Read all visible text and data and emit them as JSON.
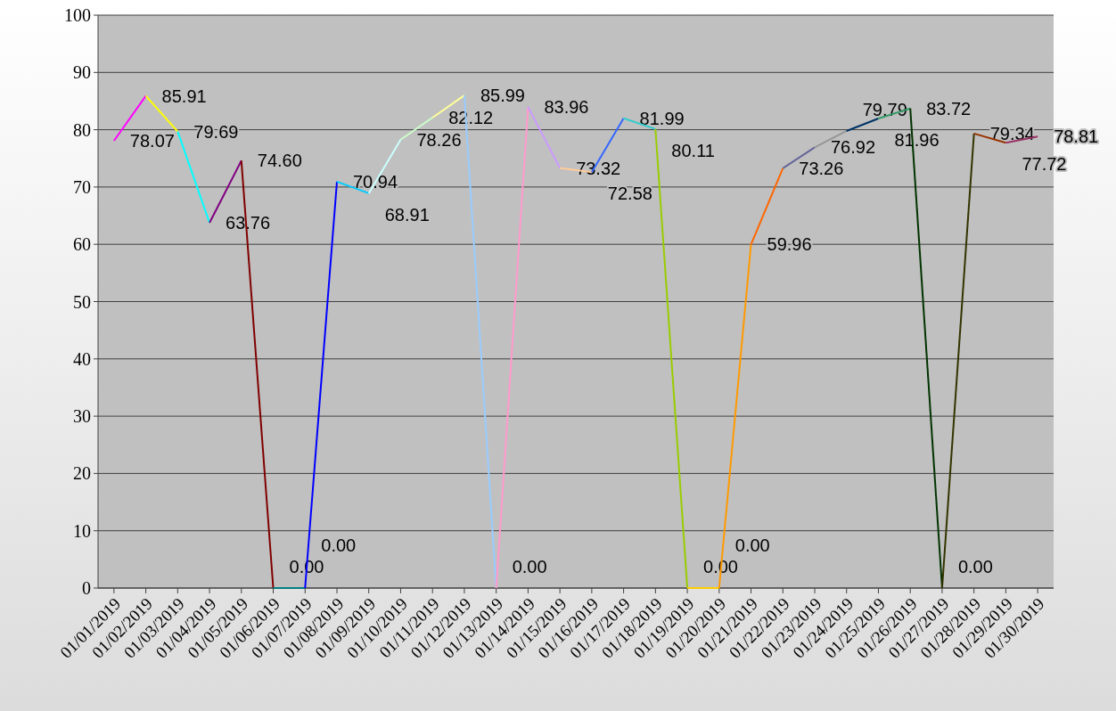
{
  "chart_data": {
    "type": "line",
    "categories": [
      "01/01/2019",
      "01/02/2019",
      "01/03/2019",
      "01/04/2019",
      "01/05/2019",
      "01/06/2019",
      "01/07/2019",
      "01/08/2019",
      "01/09/2019",
      "01/10/2019",
      "01/11/2019",
      "01/12/2019",
      "01/13/2019",
      "01/14/2019",
      "01/15/2019",
      "01/16/2019",
      "01/17/2019",
      "01/18/2019",
      "01/19/2019",
      "01/20/2019",
      "01/21/2019",
      "01/22/2019",
      "01/23/2019",
      "01/24/2019",
      "01/25/2019",
      "01/26/2019",
      "01/27/2019",
      "01/28/2019",
      "01/29/2019",
      "01/30/2019"
    ],
    "series": [
      {
        "color": "#ff00ff",
        "values": [
          78.07,
          85.91,
          null,
          null,
          null,
          null,
          null,
          null,
          null,
          null,
          null,
          null,
          null,
          null,
          null,
          null,
          null,
          null,
          null,
          null,
          null,
          null,
          null,
          null,
          null,
          null,
          null,
          null,
          null,
          null
        ],
        "value_labels": [
          "78.07",
          null,
          null,
          null,
          null,
          null,
          null,
          null,
          null,
          null,
          null,
          null,
          null,
          null,
          null,
          null,
          null,
          null,
          null,
          null,
          null,
          null,
          null,
          null,
          null,
          null,
          null,
          null,
          null,
          null
        ]
      },
      {
        "color": "#ffff00",
        "values": [
          null,
          85.91,
          79.69,
          null,
          null,
          null,
          null,
          null,
          null,
          null,
          null,
          null,
          null,
          null,
          null,
          null,
          null,
          null,
          null,
          null,
          null,
          null,
          null,
          null,
          null,
          null,
          null,
          null,
          null,
          null
        ],
        "value_labels": [
          null,
          "85.91",
          null,
          null,
          null,
          null,
          null,
          null,
          null,
          null,
          null,
          null,
          null,
          null,
          null,
          null,
          null,
          null,
          null,
          null,
          null,
          null,
          null,
          null,
          null,
          null,
          null,
          null,
          null,
          null
        ]
      },
      {
        "color": "#00ffff",
        "values": [
          null,
          null,
          79.69,
          63.76,
          null,
          null,
          null,
          null,
          null,
          null,
          null,
          null,
          null,
          null,
          null,
          null,
          null,
          null,
          null,
          null,
          null,
          null,
          null,
          null,
          null,
          null,
          null,
          null,
          null,
          null
        ],
        "value_labels": [
          null,
          null,
          "79.69",
          null,
          null,
          null,
          null,
          null,
          null,
          null,
          null,
          null,
          null,
          null,
          null,
          null,
          null,
          null,
          null,
          null,
          null,
          null,
          null,
          null,
          null,
          null,
          null,
          null,
          null,
          null
        ]
      },
      {
        "color": "#800080",
        "values": [
          null,
          null,
          null,
          63.76,
          74.6,
          null,
          null,
          null,
          null,
          null,
          null,
          null,
          null,
          null,
          null,
          null,
          null,
          null,
          null,
          null,
          null,
          null,
          null,
          null,
          null,
          null,
          null,
          null,
          null,
          null
        ],
        "value_labels": [
          null,
          null,
          null,
          "63.76",
          null,
          null,
          null,
          null,
          null,
          null,
          null,
          null,
          null,
          null,
          null,
          null,
          null,
          null,
          null,
          null,
          null,
          null,
          null,
          null,
          null,
          null,
          null,
          null,
          null,
          null
        ]
      },
      {
        "color": "#800000",
        "values": [
          null,
          null,
          null,
          null,
          74.6,
          0,
          null,
          null,
          null,
          null,
          null,
          null,
          null,
          null,
          null,
          null,
          null,
          null,
          null,
          null,
          null,
          null,
          null,
          null,
          null,
          null,
          null,
          null,
          null,
          null
        ],
        "value_labels": [
          null,
          null,
          null,
          null,
          "74.60",
          null,
          null,
          null,
          null,
          null,
          null,
          null,
          null,
          null,
          null,
          null,
          null,
          null,
          null,
          null,
          null,
          null,
          null,
          null,
          null,
          null,
          null,
          null,
          null,
          null
        ]
      },
      {
        "color": "#008080",
        "values": [
          null,
          null,
          null,
          null,
          null,
          0,
          0,
          null,
          null,
          null,
          null,
          null,
          null,
          null,
          null,
          null,
          null,
          null,
          null,
          null,
          null,
          null,
          null,
          null,
          null,
          null,
          null,
          null,
          null,
          null
        ],
        "value_labels": [
          null,
          null,
          null,
          null,
          null,
          "0.00",
          null,
          null,
          null,
          null,
          null,
          null,
          null,
          null,
          null,
          null,
          null,
          null,
          null,
          null,
          null,
          null,
          null,
          null,
          null,
          null,
          null,
          null,
          null,
          null
        ]
      },
      {
        "color": "#0000ff",
        "values": [
          null,
          null,
          null,
          null,
          null,
          null,
          0,
          70.94,
          null,
          null,
          null,
          null,
          null,
          null,
          null,
          null,
          null,
          null,
          null,
          null,
          null,
          null,
          null,
          null,
          null,
          null,
          null,
          null,
          null,
          null
        ],
        "value_labels": [
          null,
          null,
          null,
          null,
          null,
          null,
          "0.00",
          null,
          null,
          null,
          null,
          null,
          null,
          null,
          null,
          null,
          null,
          null,
          null,
          null,
          null,
          null,
          null,
          null,
          null,
          null,
          null,
          null,
          null,
          null
        ]
      },
      {
        "color": "#00ccff",
        "values": [
          null,
          null,
          null,
          null,
          null,
          null,
          null,
          70.94,
          68.91,
          null,
          null,
          null,
          null,
          null,
          null,
          null,
          null,
          null,
          null,
          null,
          null,
          null,
          null,
          null,
          null,
          null,
          null,
          null,
          null,
          null
        ],
        "value_labels": [
          null,
          null,
          null,
          null,
          null,
          null,
          null,
          "70.94",
          null,
          null,
          null,
          null,
          null,
          null,
          null,
          null,
          null,
          null,
          null,
          null,
          null,
          null,
          null,
          null,
          null,
          null,
          null,
          null,
          null,
          null
        ]
      },
      {
        "color": "#ccffff",
        "values": [
          null,
          null,
          null,
          null,
          null,
          null,
          null,
          null,
          68.91,
          78.26,
          null,
          null,
          null,
          null,
          null,
          null,
          null,
          null,
          null,
          null,
          null,
          null,
          null,
          null,
          null,
          null,
          null,
          null,
          null,
          null
        ],
        "value_labels": [
          null,
          null,
          null,
          null,
          null,
          null,
          null,
          null,
          "68.91",
          null,
          null,
          null,
          null,
          null,
          null,
          null,
          null,
          null,
          null,
          null,
          null,
          null,
          null,
          null,
          null,
          null,
          null,
          null,
          null,
          null
        ]
      },
      {
        "color": "#ccffcc",
        "values": [
          null,
          null,
          null,
          null,
          null,
          null,
          null,
          null,
          null,
          78.26,
          82.12,
          null,
          null,
          null,
          null,
          null,
          null,
          null,
          null,
          null,
          null,
          null,
          null,
          null,
          null,
          null,
          null,
          null,
          null,
          null
        ],
        "value_labels": [
          null,
          null,
          null,
          null,
          null,
          null,
          null,
          null,
          null,
          "78.26",
          null,
          null,
          null,
          null,
          null,
          null,
          null,
          null,
          null,
          null,
          null,
          null,
          null,
          null,
          null,
          null,
          null,
          null,
          null,
          null
        ]
      },
      {
        "color": "#ffff99",
        "values": [
          null,
          null,
          null,
          null,
          null,
          null,
          null,
          null,
          null,
          null,
          82.12,
          85.99,
          null,
          null,
          null,
          null,
          null,
          null,
          null,
          null,
          null,
          null,
          null,
          null,
          null,
          null,
          null,
          null,
          null,
          null
        ],
        "value_labels": [
          null,
          null,
          null,
          null,
          null,
          null,
          null,
          null,
          null,
          null,
          "82.12",
          null,
          null,
          null,
          null,
          null,
          null,
          null,
          null,
          null,
          null,
          null,
          null,
          null,
          null,
          null,
          null,
          null,
          null,
          null
        ]
      },
      {
        "color": "#99ccff",
        "values": [
          null,
          null,
          null,
          null,
          null,
          null,
          null,
          null,
          null,
          null,
          null,
          85.99,
          0,
          null,
          null,
          null,
          null,
          null,
          null,
          null,
          null,
          null,
          null,
          null,
          null,
          null,
          null,
          null,
          null,
          null
        ],
        "value_labels": [
          null,
          null,
          null,
          null,
          null,
          null,
          null,
          null,
          null,
          null,
          null,
          "85.99",
          null,
          null,
          null,
          null,
          null,
          null,
          null,
          null,
          null,
          null,
          null,
          null,
          null,
          null,
          null,
          null,
          null,
          null
        ]
      },
      {
        "color": "#ff99cc",
        "values": [
          null,
          null,
          null,
          null,
          null,
          null,
          null,
          null,
          null,
          null,
          null,
          null,
          0,
          83.96,
          null,
          null,
          null,
          null,
          null,
          null,
          null,
          null,
          null,
          null,
          null,
          null,
          null,
          null,
          null,
          null
        ],
        "value_labels": [
          null,
          null,
          null,
          null,
          null,
          null,
          null,
          null,
          null,
          null,
          null,
          null,
          "0.00",
          null,
          null,
          null,
          null,
          null,
          null,
          null,
          null,
          null,
          null,
          null,
          null,
          null,
          null,
          null,
          null,
          null
        ]
      },
      {
        "color": "#cc99ff",
        "values": [
          null,
          null,
          null,
          null,
          null,
          null,
          null,
          null,
          null,
          null,
          null,
          null,
          null,
          83.96,
          73.32,
          null,
          null,
          null,
          null,
          null,
          null,
          null,
          null,
          null,
          null,
          null,
          null,
          null,
          null,
          null
        ],
        "value_labels": [
          null,
          null,
          null,
          null,
          null,
          null,
          null,
          null,
          null,
          null,
          null,
          null,
          null,
          "83.96",
          null,
          null,
          null,
          null,
          null,
          null,
          null,
          null,
          null,
          null,
          null,
          null,
          null,
          null,
          null,
          null
        ]
      },
      {
        "color": "#ffcc99",
        "values": [
          null,
          null,
          null,
          null,
          null,
          null,
          null,
          null,
          null,
          null,
          null,
          null,
          null,
          null,
          73.32,
          72.58,
          null,
          null,
          null,
          null,
          null,
          null,
          null,
          null,
          null,
          null,
          null,
          null,
          null,
          null
        ],
        "value_labels": [
          null,
          null,
          null,
          null,
          null,
          null,
          null,
          null,
          null,
          null,
          null,
          null,
          null,
          null,
          "73.32",
          null,
          null,
          null,
          null,
          null,
          null,
          null,
          null,
          null,
          null,
          null,
          null,
          null,
          null,
          null
        ]
      },
      {
        "color": "#3366ff",
        "values": [
          null,
          null,
          null,
          null,
          null,
          null,
          null,
          null,
          null,
          null,
          null,
          null,
          null,
          null,
          null,
          72.58,
          81.99,
          null,
          null,
          null,
          null,
          null,
          null,
          null,
          null,
          null,
          null,
          null,
          null,
          null
        ],
        "value_labels": [
          null,
          null,
          null,
          null,
          null,
          null,
          null,
          null,
          null,
          null,
          null,
          null,
          null,
          null,
          null,
          "72.58",
          null,
          null,
          null,
          null,
          null,
          null,
          null,
          null,
          null,
          null,
          null,
          null,
          null,
          null
        ]
      },
      {
        "color": "#33cccc",
        "values": [
          null,
          null,
          null,
          null,
          null,
          null,
          null,
          null,
          null,
          null,
          null,
          null,
          null,
          null,
          null,
          null,
          81.99,
          80.11,
          null,
          null,
          null,
          null,
          null,
          null,
          null,
          null,
          null,
          null,
          null,
          null
        ],
        "value_labels": [
          null,
          null,
          null,
          null,
          null,
          null,
          null,
          null,
          null,
          null,
          null,
          null,
          null,
          null,
          null,
          null,
          "81.99",
          null,
          null,
          null,
          null,
          null,
          null,
          null,
          null,
          null,
          null,
          null,
          null,
          null
        ]
      },
      {
        "color": "#99cc00",
        "values": [
          null,
          null,
          null,
          null,
          null,
          null,
          null,
          null,
          null,
          null,
          null,
          null,
          null,
          null,
          null,
          null,
          null,
          80.11,
          0,
          null,
          null,
          null,
          null,
          null,
          null,
          null,
          null,
          null,
          null,
          null
        ],
        "value_labels": [
          null,
          null,
          null,
          null,
          null,
          null,
          null,
          null,
          null,
          null,
          null,
          null,
          null,
          null,
          null,
          null,
          null,
          "80.11",
          null,
          null,
          null,
          null,
          null,
          null,
          null,
          null,
          null,
          null,
          null,
          null
        ]
      },
      {
        "color": "#ffcc00",
        "values": [
          null,
          null,
          null,
          null,
          null,
          null,
          null,
          null,
          null,
          null,
          null,
          null,
          null,
          null,
          null,
          null,
          null,
          null,
          0,
          0,
          null,
          null,
          null,
          null,
          null,
          null,
          null,
          null,
          null,
          null
        ],
        "value_labels": [
          null,
          null,
          null,
          null,
          null,
          null,
          null,
          null,
          null,
          null,
          null,
          null,
          null,
          null,
          null,
          null,
          null,
          null,
          "0.00",
          null,
          null,
          null,
          null,
          null,
          null,
          null,
          null,
          null,
          null,
          null
        ]
      },
      {
        "color": "#ff9900",
        "values": [
          null,
          null,
          null,
          null,
          null,
          null,
          null,
          null,
          null,
          null,
          null,
          null,
          null,
          null,
          null,
          null,
          null,
          null,
          null,
          0,
          59.96,
          null,
          null,
          null,
          null,
          null,
          null,
          null,
          null,
          null
        ],
        "value_labels": [
          null,
          null,
          null,
          null,
          null,
          null,
          null,
          null,
          null,
          null,
          null,
          null,
          null,
          null,
          null,
          null,
          null,
          null,
          null,
          "0.00",
          null,
          null,
          null,
          null,
          null,
          null,
          null,
          null,
          null,
          null
        ]
      },
      {
        "color": "#ff6600",
        "values": [
          null,
          null,
          null,
          null,
          null,
          null,
          null,
          null,
          null,
          null,
          null,
          null,
          null,
          null,
          null,
          null,
          null,
          null,
          null,
          null,
          59.96,
          73.26,
          null,
          null,
          null,
          null,
          null,
          null,
          null,
          null
        ],
        "value_labels": [
          null,
          null,
          null,
          null,
          null,
          null,
          null,
          null,
          null,
          null,
          null,
          null,
          null,
          null,
          null,
          null,
          null,
          null,
          null,
          null,
          "59.96",
          null,
          null,
          null,
          null,
          null,
          null,
          null,
          null,
          null
        ]
      },
      {
        "color": "#666699",
        "values": [
          null,
          null,
          null,
          null,
          null,
          null,
          null,
          null,
          null,
          null,
          null,
          null,
          null,
          null,
          null,
          null,
          null,
          null,
          null,
          null,
          null,
          73.26,
          76.92,
          null,
          null,
          null,
          null,
          null,
          null,
          null
        ],
        "value_labels": [
          null,
          null,
          null,
          null,
          null,
          null,
          null,
          null,
          null,
          null,
          null,
          null,
          null,
          null,
          null,
          null,
          null,
          null,
          null,
          null,
          null,
          "73.26",
          null,
          null,
          null,
          null,
          null,
          null,
          null,
          null
        ]
      },
      {
        "color": "#969696",
        "values": [
          null,
          null,
          null,
          null,
          null,
          null,
          null,
          null,
          null,
          null,
          null,
          null,
          null,
          null,
          null,
          null,
          null,
          null,
          null,
          null,
          null,
          null,
          76.92,
          79.79,
          null,
          null,
          null,
          null,
          null,
          null
        ],
        "value_labels": [
          null,
          null,
          null,
          null,
          null,
          null,
          null,
          null,
          null,
          null,
          null,
          null,
          null,
          null,
          null,
          null,
          null,
          null,
          null,
          null,
          null,
          null,
          "76.92",
          null,
          null,
          null,
          null,
          null,
          null,
          null
        ]
      },
      {
        "color": "#003366",
        "values": [
          null,
          null,
          null,
          null,
          null,
          null,
          null,
          null,
          null,
          null,
          null,
          null,
          null,
          null,
          null,
          null,
          null,
          null,
          null,
          null,
          null,
          null,
          null,
          79.79,
          81.96,
          null,
          null,
          null,
          null,
          null
        ],
        "value_labels": [
          null,
          null,
          null,
          null,
          null,
          null,
          null,
          null,
          null,
          null,
          null,
          null,
          null,
          null,
          null,
          null,
          null,
          null,
          null,
          null,
          null,
          null,
          null,
          "79.79",
          null,
          null,
          null,
          null,
          null,
          null
        ]
      },
      {
        "color": "#339966",
        "values": [
          null,
          null,
          null,
          null,
          null,
          null,
          null,
          null,
          null,
          null,
          null,
          null,
          null,
          null,
          null,
          null,
          null,
          null,
          null,
          null,
          null,
          null,
          null,
          null,
          81.96,
          83.72,
          null,
          null,
          null,
          null
        ],
        "value_labels": [
          null,
          null,
          null,
          null,
          null,
          null,
          null,
          null,
          null,
          null,
          null,
          null,
          null,
          null,
          null,
          null,
          null,
          null,
          null,
          null,
          null,
          null,
          null,
          null,
          "81.96",
          null,
          null,
          null,
          null,
          null
        ]
      },
      {
        "color": "#003300",
        "values": [
          null,
          null,
          null,
          null,
          null,
          null,
          null,
          null,
          null,
          null,
          null,
          null,
          null,
          null,
          null,
          null,
          null,
          null,
          null,
          null,
          null,
          null,
          null,
          null,
          null,
          83.72,
          0,
          null,
          null,
          null
        ],
        "value_labels": [
          null,
          null,
          null,
          null,
          null,
          null,
          null,
          null,
          null,
          null,
          null,
          null,
          null,
          null,
          null,
          null,
          null,
          null,
          null,
          null,
          null,
          null,
          null,
          null,
          null,
          "83.72",
          null,
          null,
          null,
          null
        ]
      },
      {
        "color": "#333300",
        "values": [
          null,
          null,
          null,
          null,
          null,
          null,
          null,
          null,
          null,
          null,
          null,
          null,
          null,
          null,
          null,
          null,
          null,
          null,
          null,
          null,
          null,
          null,
          null,
          null,
          null,
          null,
          0,
          79.34,
          null,
          null
        ],
        "value_labels": [
          null,
          null,
          null,
          null,
          null,
          null,
          null,
          null,
          null,
          null,
          null,
          null,
          null,
          null,
          null,
          null,
          null,
          null,
          null,
          null,
          null,
          null,
          null,
          null,
          null,
          null,
          "0.00",
          null,
          null,
          null
        ]
      },
      {
        "color": "#993300",
        "values": [
          null,
          null,
          null,
          null,
          null,
          null,
          null,
          null,
          null,
          null,
          null,
          null,
          null,
          null,
          null,
          null,
          null,
          null,
          null,
          null,
          null,
          null,
          null,
          null,
          null,
          null,
          null,
          79.34,
          77.72,
          null
        ],
        "value_labels": [
          null,
          null,
          null,
          null,
          null,
          null,
          null,
          null,
          null,
          null,
          null,
          null,
          null,
          null,
          null,
          null,
          null,
          null,
          null,
          null,
          null,
          null,
          null,
          null,
          null,
          null,
          null,
          "79.34",
          null,
          null
        ]
      },
      {
        "color": "#993366",
        "values": [
          null,
          null,
          null,
          null,
          null,
          null,
          null,
          null,
          null,
          null,
          null,
          null,
          null,
          null,
          null,
          null,
          null,
          null,
          null,
          null,
          null,
          null,
          null,
          null,
          null,
          null,
          null,
          null,
          77.72,
          78.81
        ],
        "value_labels": [
          null,
          null,
          null,
          null,
          null,
          null,
          null,
          null,
          null,
          null,
          null,
          null,
          null,
          null,
          null,
          null,
          null,
          null,
          null,
          null,
          null,
          null,
          null,
          null,
          null,
          null,
          null,
          null,
          "77.72",
          "78.81"
        ]
      }
    ],
    "ylim": [
      0,
      100
    ],
    "yticks": [
      0,
      10,
      20,
      30,
      40,
      50,
      60,
      70,
      80,
      90,
      100
    ],
    "grid": "y"
  }
}
